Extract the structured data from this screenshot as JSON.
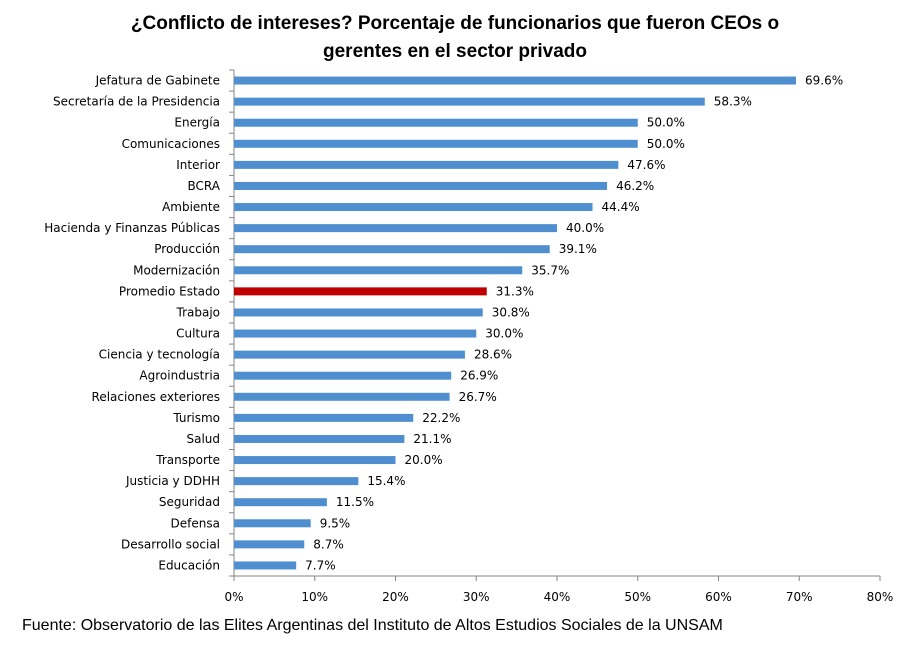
{
  "chart_data": {
    "type": "bar",
    "orientation": "horizontal",
    "title_lines": [
      "¿Conflicto de intereses? Porcentaje de funcionarios que fueron CEOs o",
      "gerentes en el sector privado"
    ],
    "categories": [
      "Jefatura de Gabinete",
      "Secretaría de la Presidencia",
      "Energía",
      "Comunicaciones",
      "Interior",
      "BCRA",
      "Ambiente",
      "Hacienda y Finanzas Públicas",
      "Producción",
      "Modernización",
      "Promedio Estado",
      "Trabajo",
      "Cultura",
      "Ciencia y tecnología",
      "Agroindustria",
      "Relaciones exteriores",
      "Turismo",
      "Salud",
      "Transporte",
      "Justicia y DDHH",
      "Seguridad",
      "Defensa",
      "Desarrollo social",
      "Educación"
    ],
    "values": [
      69.6,
      58.3,
      50.0,
      50.0,
      47.6,
      46.2,
      44.4,
      40.0,
      39.1,
      35.7,
      31.3,
      30.8,
      30.0,
      28.6,
      26.9,
      26.7,
      22.2,
      21.1,
      20.0,
      15.4,
      11.5,
      9.5,
      8.7,
      7.7
    ],
    "value_labels": [
      "69.6%",
      "58.3%",
      "50.0%",
      "50.0%",
      "47.6%",
      "46.2%",
      "44.4%",
      "40.0%",
      "39.1%",
      "35.7%",
      "31.3%",
      "30.8%",
      "30.0%",
      "28.6%",
      "26.9%",
      "26.7%",
      "22.2%",
      "21.1%",
      "20.0%",
      "15.4%",
      "11.5%",
      "9.5%",
      "8.7%",
      "7.7%"
    ],
    "highlight_category": "Promedio Estado",
    "xlim": [
      0,
      80
    ],
    "x_ticks": [
      "0%",
      "10%",
      "20%",
      "30%",
      "40%",
      "50%",
      "60%",
      "70%",
      "80%"
    ],
    "grid": false,
    "colors": {
      "bar": "#4f8fd0",
      "highlight": "#c00000",
      "axis": "#868686"
    }
  },
  "source": "Fuente: Observatorio de las Elites Argentinas del Instituto de Altos Estudios Sociales de la UNSAM"
}
